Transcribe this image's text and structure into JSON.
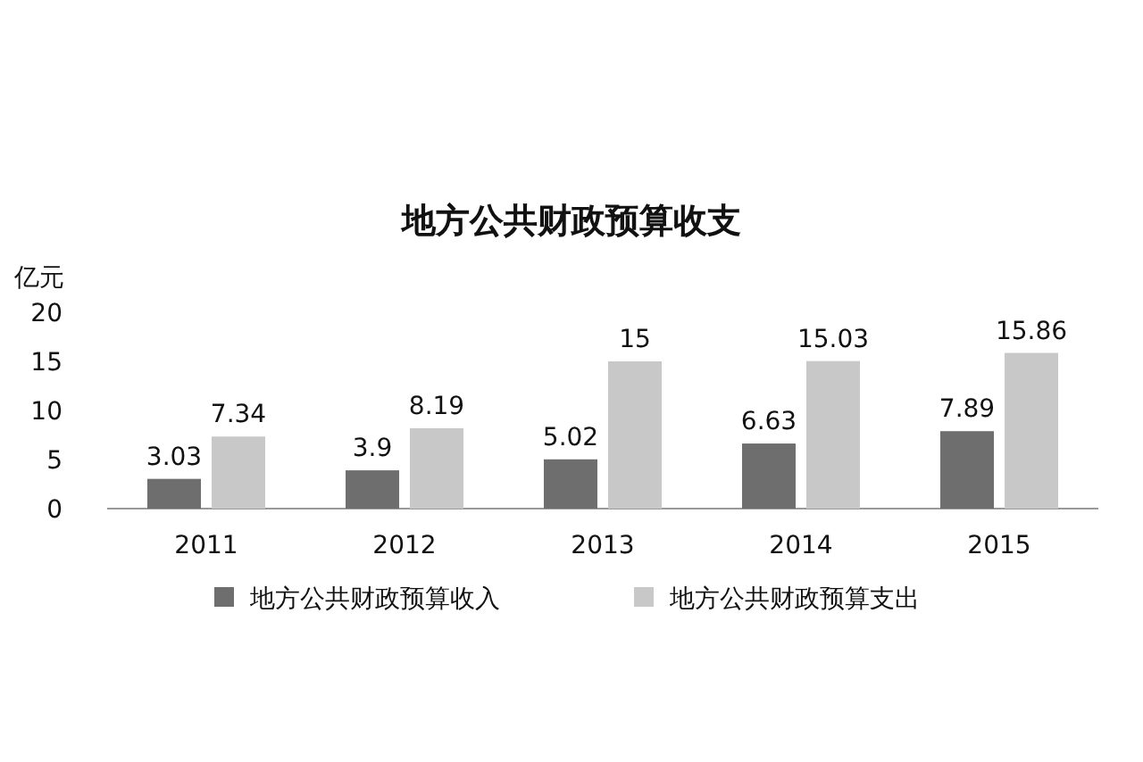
{
  "chart_data": {
    "type": "bar",
    "title": "地方公共财政预算收支",
    "ylabel": "亿元",
    "categories": [
      "2011",
      "2012",
      "2013",
      "2014",
      "2015"
    ],
    "series": [
      {
        "name": "地方公共财政预算收入",
        "color": "#6e6e6e",
        "values": [
          3.03,
          3.9,
          5.02,
          6.63,
          7.89
        ]
      },
      {
        "name": "地方公共财政预算支出",
        "color": "#c8c8c8",
        "values": [
          7.34,
          8.19,
          15,
          15.03,
          15.86
        ]
      }
    ],
    "ylim": [
      0,
      20
    ],
    "yticks": [
      0,
      5,
      10,
      15,
      20
    ],
    "data_labels": true,
    "legend": "bottom",
    "grid": false
  }
}
